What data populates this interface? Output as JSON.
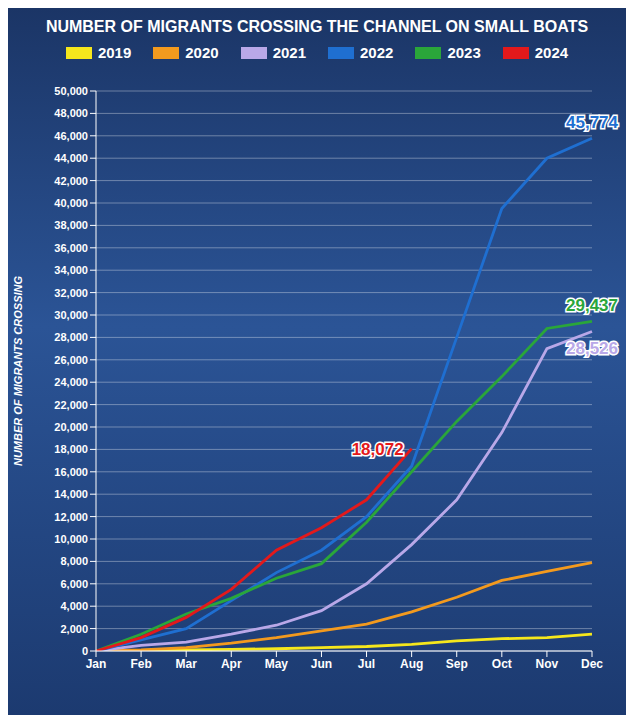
{
  "chart_data": {
    "type": "line",
    "title": "NUMBER OF MIGRANTS CROSSING THE CHANNEL ON SMALL BOATS",
    "y_label": "NUMBER OF MIGRANTS CROSSING",
    "categories": [
      "Jan",
      "Feb",
      "Mar",
      "Apr",
      "May",
      "Jun",
      "Jul",
      "Aug",
      "Sep",
      "Oct",
      "Nov",
      "Dec"
    ],
    "series": [
      {
        "name": "2019",
        "color": "#f5e71c",
        "values": [
          0,
          50,
          100,
          150,
          200,
          300,
          400,
          600,
          900,
          1100,
          1200,
          1500
        ]
      },
      {
        "name": "2020",
        "color": "#f39a1e",
        "values": [
          0,
          100,
          300,
          700,
          1200,
          1800,
          2400,
          3500,
          4800,
          6300,
          7100,
          7900
        ]
      },
      {
        "name": "2021",
        "color": "#b9a8e8",
        "values": [
          0,
          500,
          800,
          1500,
          2300,
          3600,
          6000,
          9500,
          13500,
          19500,
          27000,
          28526
        ]
      },
      {
        "name": "2022",
        "color": "#1f6fd1",
        "values": [
          0,
          1000,
          2000,
          4500,
          7000,
          9000,
          12000,
          16500,
          28000,
          39500,
          44000,
          45774
        ]
      },
      {
        "name": "2023",
        "color": "#2aa63a",
        "values": [
          0,
          1500,
          3300,
          4700,
          6500,
          7800,
          11500,
          16000,
          20500,
          24500,
          28800,
          29437
        ]
      },
      {
        "name": "2024",
        "color": "#e3191b",
        "values": [
          0,
          1200,
          3000,
          5500,
          9000,
          11000,
          13500,
          18072,
          null,
          null,
          null,
          null
        ]
      }
    ],
    "ylim": [
      0,
      50000
    ],
    "yticks": [
      0,
      {
        "value": 2000,
        "label": "2,000"
      },
      {
        "value": 4000,
        "label": "4,000"
      },
      {
        "value": 6000,
        "label": "6,000"
      },
      {
        "value": 8000,
        "label": "8,000"
      },
      {
        "value": 10000,
        "label": "10,000"
      },
      {
        "value": 12000,
        "label": "12,000"
      },
      {
        "value": 14000,
        "label": "14,000"
      },
      {
        "value": 16000,
        "label": "16,000"
      },
      {
        "value": 18000,
        "label": "18,000"
      },
      {
        "value": 20000,
        "label": "20,000"
      },
      {
        "value": 22000,
        "label": "22,000"
      },
      {
        "value": 24000,
        "label": "24,000"
      },
      {
        "value": 26000,
        "label": "26,000"
      },
      {
        "value": 28000,
        "label": "28,000"
      },
      {
        "value": 30000,
        "label": "30,000"
      },
      {
        "value": 32000,
        "label": "32,000"
      },
      {
        "value": 34000,
        "label": "34,000"
      },
      {
        "value": 36000,
        "label": "36,000"
      },
      {
        "value": 38000,
        "label": "38,000"
      },
      {
        "value": 40000,
        "label": "40,000"
      },
      {
        "value": 42000,
        "label": "42,000"
      },
      {
        "value": 44000,
        "label": "44,000"
      },
      {
        "value": 46000,
        "label": "46,000"
      },
      {
        "value": 48000,
        "label": "48,000"
      },
      {
        "value": 50000,
        "label": "50,000"
      }
    ],
    "grid": true,
    "legend": "top",
    "annotations": [
      {
        "text": "45,774",
        "series": "2022",
        "x": "Dec",
        "y": 45774
      },
      {
        "text": "29,437",
        "series": "2023",
        "x": "Dec",
        "y": 29437
      },
      {
        "text": "28,526",
        "series": "2021",
        "x": "Dec",
        "y": 28526
      },
      {
        "text": "18,072",
        "series": "2024",
        "x": "Aug",
        "y": 18072
      }
    ]
  }
}
